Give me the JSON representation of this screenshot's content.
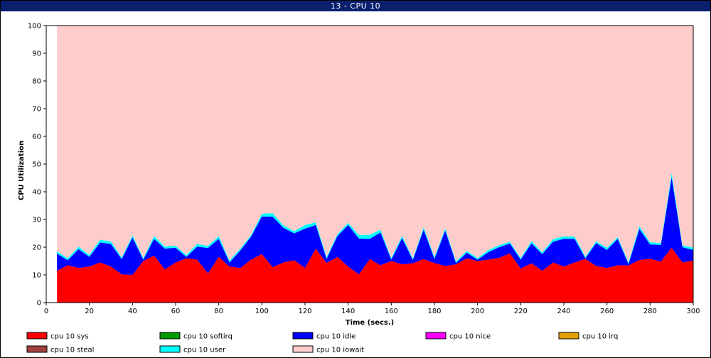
{
  "window": {
    "title": "13 - CPU 10"
  },
  "chart_data": {
    "type": "area",
    "stacked": true,
    "xlabel": "Time (secs.)",
    "ylabel": "CPU Utilization",
    "xlim": [
      0,
      300
    ],
    "ylim": [
      0,
      100
    ],
    "xticks": [
      0,
      20,
      40,
      60,
      80,
      100,
      120,
      140,
      160,
      180,
      200,
      220,
      240,
      260,
      280,
      300
    ],
    "yticks": [
      0,
      10,
      20,
      30,
      40,
      50,
      60,
      70,
      80,
      90,
      100
    ],
    "grid": false,
    "legend_position": "bottom",
    "x": [
      5,
      10,
      15,
      20,
      25,
      30,
      35,
      40,
      45,
      50,
      55,
      60,
      65,
      70,
      75,
      80,
      85,
      90,
      95,
      100,
      105,
      110,
      115,
      120,
      125,
      130,
      135,
      140,
      145,
      150,
      155,
      160,
      165,
      170,
      175,
      180,
      185,
      190,
      195,
      200,
      205,
      210,
      215,
      220,
      225,
      230,
      235,
      240,
      245,
      250,
      255,
      260,
      265,
      270,
      275,
      280,
      285,
      290,
      295,
      300
    ],
    "series": [
      {
        "name": "cpu 10 sys",
        "color": "#ff0000",
        "values": [
          11.5,
          13.5,
          12.5,
          13,
          14.5,
          13,
          10.2,
          10,
          15,
          17,
          12,
          14.5,
          16,
          15.5,
          10.5,
          16.5,
          13,
          12.5,
          15.5,
          17.5,
          12.8,
          14.5,
          15.3,
          12.5,
          19.5,
          14.3,
          16.5,
          13,
          10.2,
          15.7,
          13.5,
          15,
          13.8,
          14.2,
          15.7,
          14.3,
          13.2,
          13.8,
          16,
          15,
          15.5,
          16.2,
          17.8,
          12.3,
          14.2,
          11.5,
          14.5,
          13,
          14.5,
          15.8,
          13.2,
          12.5,
          13.5,
          13.4,
          15.4,
          15.8,
          14.8,
          19.8,
          14.5,
          15.2
        ]
      },
      {
        "name": "cpu 10 softirq",
        "color": "#009900",
        "values": [
          0,
          0,
          0,
          0,
          0,
          0,
          0,
          0,
          0,
          0,
          0,
          0,
          0,
          0,
          0,
          0,
          0,
          0,
          0,
          0,
          0,
          0,
          0,
          0,
          0,
          0,
          0,
          0,
          0,
          0,
          0,
          0,
          0,
          0,
          0,
          0,
          0,
          0,
          0,
          0,
          0,
          0,
          0,
          0,
          0,
          0,
          0,
          0,
          0,
          0,
          0,
          0,
          0,
          0,
          0,
          0,
          0,
          0,
          0,
          0
        ]
      },
      {
        "name": "cpu 10 idle",
        "color": "#0000ff",
        "values": [
          6.2,
          1.8,
          6.8,
          3.5,
          7.2,
          8.2,
          5.5,
          13.5,
          0.5,
          6,
          7.5,
          5.3,
          0.5,
          4.7,
          9.2,
          6.5,
          1.5,
          6.3,
          8.3,
          13.6,
          18.2,
          12.5,
          9.7,
          14.2,
          8.5,
          1.5,
          7.5,
          15,
          12.9,
          7.3,
          11.8,
          0.5,
          9.5,
          1.2,
          10.6,
          1.5,
          12.8,
          0.5,
          2,
          0.5,
          2.7,
          3.8,
          3.5,
          3.2,
          7.2,
          6,
          7.5,
          10,
          8.5,
          0.2,
          8.3,
          6.5,
          9.5,
          0.5,
          11.2,
          5.2,
          6,
          25.5,
          5.5,
          3.8
        ]
      },
      {
        "name": "cpu 10 nice",
        "color": "#ff00ff",
        "values": [
          0,
          0,
          0,
          0,
          0,
          0,
          0,
          0,
          0,
          0,
          0,
          0,
          0,
          0,
          0,
          0,
          0,
          0,
          0,
          0,
          0,
          0,
          0,
          0,
          0,
          0,
          0,
          0,
          0,
          0,
          0,
          0,
          0,
          0,
          0,
          0,
          0,
          0,
          0,
          0,
          0,
          0,
          0,
          0,
          0,
          0,
          0,
          0,
          0,
          0,
          0,
          0,
          0,
          0,
          0,
          0,
          0,
          0,
          0,
          0
        ]
      },
      {
        "name": "cpu 10 irq",
        "color": "#e0a000",
        "values": [
          0,
          0,
          0,
          0,
          0,
          0,
          0,
          0,
          0,
          0,
          0,
          0,
          0,
          0,
          0,
          0,
          0,
          0,
          0,
          0,
          0,
          0,
          0,
          0,
          0,
          0,
          0,
          0,
          0,
          0,
          0,
          0,
          0,
          0,
          0,
          0,
          0,
          0,
          0,
          0,
          0,
          0,
          0,
          0,
          0,
          0,
          0,
          0,
          0,
          0,
          0,
          0,
          0,
          0,
          0,
          0,
          0,
          0,
          0,
          0
        ]
      },
      {
        "name": "cpu 10 steal",
        "color": "#a04040",
        "values": [
          0,
          0,
          0,
          0,
          0,
          0,
          0,
          0,
          0,
          0,
          0,
          0,
          0,
          0,
          0,
          0,
          0,
          0,
          0,
          0,
          0,
          0,
          0,
          0,
          0,
          0,
          0,
          0,
          0,
          0,
          0,
          0,
          0,
          0,
          0,
          0,
          0,
          0,
          0,
          0,
          0,
          0,
          0,
          0,
          0,
          0,
          0,
          0,
          0,
          0,
          0,
          0,
          0,
          0,
          0,
          0,
          0,
          0,
          0,
          0
        ]
      },
      {
        "name": "cpu 10 user",
        "color": "#00ffff",
        "values": [
          0.8,
          0.7,
          0.9,
          0.7,
          1,
          0.9,
          0.6,
          0.8,
          0.6,
          1,
          0.8,
          0.7,
          0.7,
          1,
          0.8,
          1,
          0.7,
          0.7,
          0.6,
          1,
          1.3,
          0.9,
          0.8,
          1.3,
          1,
          0.7,
          0.6,
          0.8,
          1.3,
          1.5,
          1,
          0.6,
          0.8,
          0.5,
          0.9,
          0.6,
          0.8,
          0.6,
          0.7,
          0.6,
          0.8,
          0.7,
          0.7,
          0.6,
          0.8,
          0.7,
          0.9,
          0.9,
          0.8,
          0.6,
          0.6,
          0.8,
          0.7,
          0.6,
          1,
          0.8,
          0.7,
          1.5,
          0.7,
          0.8
        ]
      },
      {
        "name": "cpu 10 iowait",
        "color": "#ffcccc",
        "values": [
          81.5,
          84,
          79.8,
          82.8,
          77.3,
          77.9,
          83.7,
          75.7,
          83.9,
          76,
          79.7,
          79.5,
          82.8,
          78.8,
          79.5,
          76,
          84.8,
          80.5,
          75.6,
          67.9,
          67.7,
          72.1,
          74.2,
          72,
          71,
          83.5,
          75.4,
          71.2,
          75.6,
          75.5,
          73.7,
          83.9,
          75.9,
          84.1,
          72.8,
          83.6,
          73.2,
          85.1,
          81.3,
          83.9,
          81,
          79.3,
          78,
          83.9,
          77.8,
          81.8,
          77.1,
          76.1,
          76.2,
          83.4,
          77.9,
          80.2,
          76.3,
          85.5,
          72.4,
          78.2,
          78.5,
          53.2,
          79.3,
          80.2
        ]
      }
    ]
  }
}
